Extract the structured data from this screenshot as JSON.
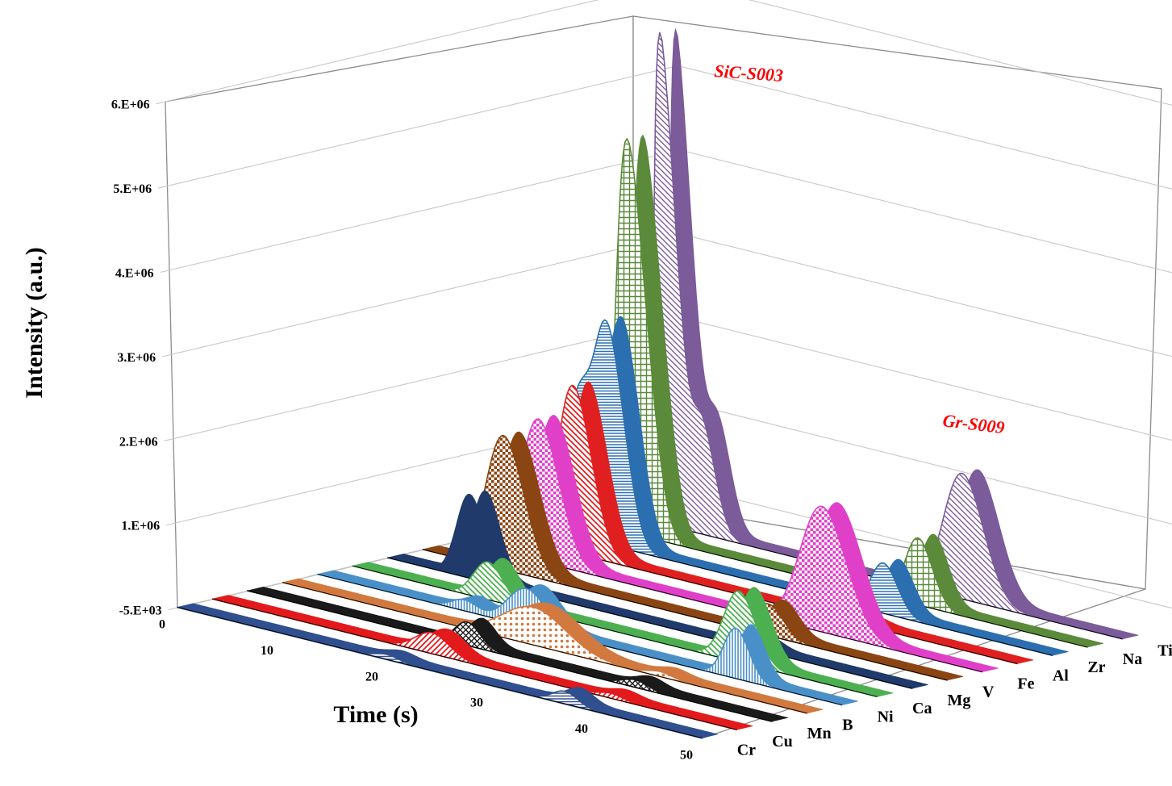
{
  "chart_data": {
    "type": "area",
    "subtype": "3d-stacked-ribbons",
    "xlabel": "Time (s)",
    "ylabel": "Intensity (a.u.)",
    "xlim": [
      0,
      50
    ],
    "ylim": [
      -5000,
      6000000
    ],
    "x_ticks": [
      "0",
      "10",
      "20",
      "30",
      "40",
      "50"
    ],
    "y_ticks": [
      "-5.E+03",
      "1.E+06",
      "2.E+06",
      "3.E+06",
      "4.E+06",
      "5.E+06",
      "6.E+06"
    ],
    "grid": true,
    "annotations": [
      {
        "text": "SiC-S003",
        "color": "#ff0000"
      },
      {
        "text": "Gr-S009",
        "color": "#ff0000"
      }
    ],
    "series": [
      {
        "name": "Cr",
        "color": "#2f4f8f",
        "peaks": [
          {
            "t": 20,
            "h": 60000,
            "w": 1.2
          },
          {
            "t": 37,
            "h": 150000,
            "w": 1.2
          }
        ]
      },
      {
        "name": "Cu",
        "color": "#e31a1c",
        "peaks": [
          {
            "t": 21,
            "h": 250000,
            "w": 1.6
          },
          {
            "t": 38,
            "h": 60000,
            "w": 1.2
          }
        ]
      },
      {
        "name": "Mn",
        "color": "#1a1a1a",
        "peaks": [
          {
            "t": 21,
            "h": 280000,
            "w": 1.2
          },
          {
            "t": 37,
            "h": 90000,
            "w": 1.2
          }
        ]
      },
      {
        "name": "B",
        "color": "#d2793f",
        "peaks": [
          {
            "t": 24,
            "h": 450000,
            "w": 3.0
          },
          {
            "t": 36,
            "h": 60000,
            "w": 1.2
          }
        ]
      },
      {
        "name": "Ni",
        "color": "#4a90c8",
        "peaks": [
          {
            "t": 14,
            "h": 130000,
            "w": 1.2
          },
          {
            "t": 20,
            "h": 450000,
            "w": 1.8
          },
          {
            "t": 40,
            "h": 600000,
            "w": 1.2
          }
        ]
      },
      {
        "name": "Ca",
        "color": "#4caf50",
        "peaks": [
          {
            "t": 13,
            "h": 450000,
            "w": 1.4
          },
          {
            "t": 37,
            "h": 850000,
            "w": 1.5
          }
        ]
      },
      {
        "name": "Mg",
        "color": "#1f3a6b",
        "peaks": [
          {
            "t": 8,
            "h": 1000000,
            "w": 1.3
          },
          {
            "t": 35,
            "h": 110000,
            "w": 1.2
          }
        ]
      },
      {
        "name": "V",
        "color": "#8b4513",
        "peaks": [
          {
            "t": 8,
            "h": 1600000,
            "w": 1.8
          },
          {
            "t": 33,
            "h": 380000,
            "w": 1.4
          }
        ]
      },
      {
        "name": "Fe",
        "color": "#e040c8",
        "peaks": [
          {
            "t": 8,
            "h": 1700000,
            "w": 1.8
          },
          {
            "t": 35,
            "h": 1500000,
            "w": 2.2
          }
        ]
      },
      {
        "name": "Al",
        "color": "#e02020",
        "peaks": [
          {
            "t": 8,
            "h": 2000000,
            "w": 1.6
          },
          {
            "t": 35,
            "h": 60000,
            "w": 1.2
          }
        ]
      },
      {
        "name": "Zr",
        "color": "#2c6fb0",
        "peaks": [
          {
            "t": 5,
            "h": 1500000,
            "w": 1.2
          },
          {
            "t": 8,
            "h": 2600000,
            "w": 1.4
          },
          {
            "t": 34,
            "h": 600000,
            "w": 1.3
          }
        ]
      },
      {
        "name": "Na",
        "color": "#5a8a3a",
        "peaks": [
          {
            "t": 7,
            "h": 4700000,
            "w": 1.4
          },
          {
            "t": 34,
            "h": 800000,
            "w": 1.3
          }
        ]
      },
      {
        "name": "Ti",
        "color": "#7b5b9a",
        "peaks": [
          {
            "t": 7,
            "h": 5800000,
            "w": 1.0
          },
          {
            "t": 10,
            "h": 1400000,
            "w": 1.2
          },
          {
            "t": 35,
            "h": 1500000,
            "w": 1.9
          }
        ]
      }
    ]
  }
}
